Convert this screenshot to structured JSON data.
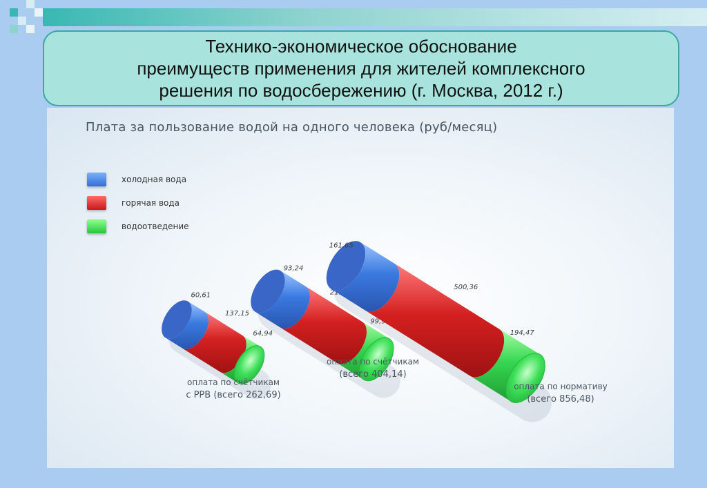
{
  "title": {
    "lines": [
      "Технико-экономическое обоснование",
      "преимуществ применения для жителей комплексного",
      "решения по водосбережению (г. Москва, 2012 г.)"
    ]
  },
  "colors": {
    "cold_water": "#2f6fd6",
    "hot_water": "#d42020",
    "drainage": "#2fd64a",
    "title_box": "#a8e4dd"
  },
  "chart_data": {
    "type": "bar",
    "title": "Плата за пользование водой на одного человека (руб/месяц)",
    "stacked": true,
    "categories": [
      "оплата по счётчикам с РРВ (всего 262,69)",
      "оплата по счётчикам (всего 404,14)",
      "оплата по нормативу (всего 856,48)"
    ],
    "series": [
      {
        "name": "холодная вода",
        "values": [
          60.61,
          93.24,
          161.65
        ],
        "labels": [
          "60,61",
          "93,24",
          "161,65"
        ]
      },
      {
        "name": "горячая вода",
        "values": [
          137.15,
          211,
          500.36
        ],
        "labels": [
          "137,15",
          "211",
          "500,36"
        ]
      },
      {
        "name": "водоотведение",
        "values": [
          64.94,
          99.9,
          194.47
        ],
        "labels": [
          "64,94",
          "99,9",
          "194,47"
        ]
      }
    ],
    "totals": [
      262.69,
      404.14,
      856.48
    ],
    "bar_captions": [
      [
        "оплата по счётчикам",
        "с РРВ (всего 262,69)"
      ],
      [
        "оплата по счётчикам",
        "(всего 404,14)"
      ],
      [
        "оплата по нормативу",
        "(всего 856,48)"
      ]
    ],
    "legend_position": "top-left"
  }
}
